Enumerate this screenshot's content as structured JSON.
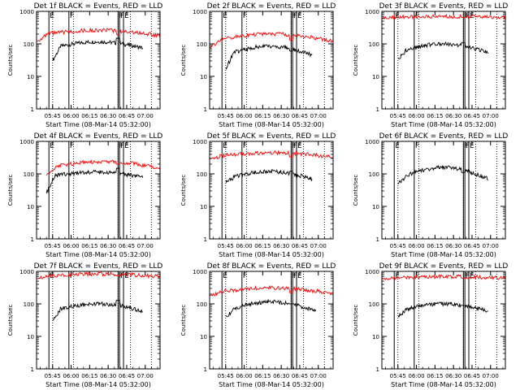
{
  "chart_data": [
    {
      "type": "line",
      "title": "Det 1f BLACK = Events, RED = LLD",
      "ylabel": "Counts/sec",
      "xlabel": "Start Time (08-Mar-14 05:32:00)",
      "yscale": "log",
      "ylim": [
        1,
        1000
      ],
      "yticks": [
        "1",
        "10",
        "100",
        "1000"
      ],
      "xlim": [
        "05:32",
        "07:12"
      ],
      "xticks": [
        "05:45",
        "06:00",
        "06:15",
        "06:30",
        "06:45",
        "07:00"
      ],
      "markers": [
        "E",
        "F",
        "F",
        "F",
        "E"
      ],
      "series": [
        {
          "name": "Events",
          "color": "#000000",
          "start": "05:45",
          "end": "06:58",
          "base": 75,
          "min": 30,
          "max": 125,
          "flare": 150
        },
        {
          "name": "LLD",
          "color": "#ff0000",
          "start": "05:32",
          "end": "07:12",
          "base": 180,
          "min": 120,
          "max": 280,
          "flare": 190
        }
      ]
    },
    {
      "type": "line",
      "title": "Det 2f BLACK = Events, RED = LLD",
      "ylabel": "Counts/sec",
      "xlabel": "Start Time (08-Mar-14 05:32:00)",
      "yscale": "log",
      "ylim": [
        1,
        1000
      ],
      "yticks": [
        "1",
        "10",
        "100",
        "1000"
      ],
      "xlim": [
        "05:32",
        "07:12"
      ],
      "xticks": [
        "05:45",
        "06:00",
        "06:15",
        "06:30",
        "06:45",
        "07:00"
      ],
      "markers": [
        "E",
        "F",
        "F",
        "F",
        "E"
      ],
      "series": [
        {
          "name": "Events",
          "color": "#000000",
          "start": "05:45",
          "end": "06:55",
          "base": 45,
          "min": 17,
          "max": 95,
          "flare": 60
        },
        {
          "name": "LLD",
          "color": "#ff0000",
          "start": "05:32",
          "end": "07:12",
          "base": 120,
          "min": 75,
          "max": 220,
          "flare": 130
        }
      ]
    },
    {
      "type": "line",
      "title": "Det 3f BLACK = Events, RED = LLD",
      "ylabel": "Counts/sec",
      "xlabel": "Start Time (08-Mar-14 05:32:00)",
      "yscale": "log",
      "ylim": [
        1,
        1000
      ],
      "yticks": [
        "1",
        "10",
        "100",
        "1000"
      ],
      "xlim": [
        "05:32",
        "07:12"
      ],
      "xticks": [
        "05:45",
        "06:00",
        "06:15",
        "06:30",
        "06:45",
        "07:00"
      ],
      "markers": [
        "E",
        "F",
        "F",
        "F",
        "E"
      ],
      "series": [
        {
          "name": "Events",
          "color": "#000000",
          "start": "05:45",
          "end": "06:58",
          "base": 55,
          "min": 35,
          "max": 110,
          "flare": 110
        },
        {
          "name": "LLD",
          "color": "#ff0000",
          "start": "05:32",
          "end": "07:12",
          "base": 650,
          "min": 600,
          "max": 700,
          "flare": 650
        }
      ]
    },
    {
      "type": "line",
      "title": "Det 4f BLACK = Events, RED = LLD",
      "ylabel": "Counts/sec",
      "xlabel": "Start Time (08-Mar-14 05:32:00)",
      "yscale": "log",
      "ylim": [
        1,
        1000
      ],
      "yticks": [
        "1",
        "10",
        "100",
        "1000"
      ],
      "xlim": [
        "05:32",
        "07:12"
      ],
      "xticks": [
        "05:45",
        "06:00",
        "06:15",
        "06:30",
        "06:45",
        "07:00"
      ],
      "markers": [
        "E",
        "F",
        "F",
        "F",
        "E"
      ],
      "series": [
        {
          "name": "Events",
          "color": "#000000",
          "start": "05:40",
          "end": "06:58",
          "base": 80,
          "min": 25,
          "max": 120,
          "flare": 150
        },
        {
          "name": "LLD",
          "color": "#ff0000",
          "start": "05:40",
          "end": "07:12",
          "base": 150,
          "min": 90,
          "max": 260,
          "flare": 200
        }
      ]
    },
    {
      "type": "line",
      "title": "Det 5f BLACK = Events, RED = LLD",
      "ylabel": "Counts/sec",
      "xlabel": "Start Time (08-Mar-14 05:32:00)",
      "yscale": "log",
      "ylim": [
        1,
        1000
      ],
      "yticks": [
        "1",
        "10",
        "100",
        "1000"
      ],
      "xlim": [
        "05:32",
        "07:12"
      ],
      "xticks": [
        "05:45",
        "06:00",
        "06:15",
        "06:30",
        "06:45",
        "07:00"
      ],
      "markers": [
        "E",
        "F",
        "F",
        "F",
        "E"
      ],
      "series": [
        {
          "name": "Events",
          "color": "#000000",
          "start": "05:45",
          "end": "06:55",
          "base": 70,
          "min": 55,
          "max": 130,
          "flare": 120
        },
        {
          "name": "LLD",
          "color": "#ff0000",
          "start": "05:32",
          "end": "07:12",
          "base": 330,
          "min": 280,
          "max": 470,
          "flare": 330
        }
      ]
    },
    {
      "type": "line",
      "title": "Det 6f BLACK = Events, RED = LLD",
      "ylabel": "Counts/sec",
      "xlabel": "Start Time (08-Mar-14 05:32:00)",
      "yscale": "log",
      "ylim": [
        1,
        1000
      ],
      "yticks": [
        "1",
        "10",
        "100",
        "1000"
      ],
      "xlim": [
        "05:32",
        "07:12"
      ],
      "xticks": [
        "05:45",
        "06:00",
        "06:15",
        "06:30",
        "06:45",
        "07:00"
      ],
      "markers": [
        "E",
        "F",
        "F",
        "F",
        "E"
      ],
      "series": [
        {
          "name": "Events",
          "color": "#000000",
          "start": "05:45",
          "end": "06:58",
          "base": 70,
          "min": 50,
          "max": 180,
          "flare": 110
        }
      ]
    },
    {
      "type": "line",
      "title": "Det 7f BLACK = Events, RED = LLD",
      "ylabel": "Counts/sec",
      "xlabel": "Start Time (08-Mar-14 05:32:00)",
      "yscale": "log",
      "ylim": [
        1,
        1000
      ],
      "yticks": [
        "1",
        "10",
        "100",
        "1000"
      ],
      "xlim": [
        "05:32",
        "07:12"
      ],
      "xticks": [
        "05:45",
        "06:00",
        "06:15",
        "06:30",
        "06:45",
        "07:00"
      ],
      "markers": [
        "E",
        "F",
        "F",
        "F",
        "E"
      ],
      "series": [
        {
          "name": "Events",
          "color": "#000000",
          "start": "05:45",
          "end": "06:58",
          "base": 60,
          "min": 30,
          "max": 110,
          "flare": 130
        },
        {
          "name": "LLD",
          "color": "#ff0000",
          "start": "05:32",
          "end": "07:12",
          "base": 700,
          "min": 600,
          "max": 850,
          "flare": 750
        }
      ]
    },
    {
      "type": "line",
      "title": "Det 8f BLACK = Events, RED = LLD",
      "ylabel": "Counts/sec",
      "xlabel": "Start Time (08-Mar-14 05:32:00)",
      "yscale": "log",
      "ylim": [
        1,
        1000
      ],
      "yticks": [
        "1",
        "10",
        "100",
        "1000"
      ],
      "xlim": [
        "05:32",
        "07:12"
      ],
      "xticks": [
        "05:45",
        "06:00",
        "06:15",
        "06:30",
        "06:45",
        "07:00"
      ],
      "markers": [
        "E",
        "F",
        "F",
        "F",
        "E"
      ],
      "series": [
        {
          "name": "Events",
          "color": "#000000",
          "start": "05:45",
          "end": "06:58",
          "base": 60,
          "min": 40,
          "max": 130,
          "flare": 100
        },
        {
          "name": "LLD",
          "color": "#ff0000",
          "start": "05:32",
          "end": "07:12",
          "base": 210,
          "min": 180,
          "max": 330,
          "flare": 220
        }
      ]
    },
    {
      "type": "line",
      "title": "Det 9f BLACK = Events, RED = LLD",
      "ylabel": "Counts/sec",
      "xlabel": "Start Time (08-Mar-14 05:32:00)",
      "yscale": "log",
      "ylim": [
        1,
        1000
      ],
      "yticks": [
        "1",
        "10",
        "100",
        "1000"
      ],
      "xlim": [
        "05:32",
        "07:12"
      ],
      "xticks": [
        "05:45",
        "06:00",
        "06:15",
        "06:30",
        "06:45",
        "07:00"
      ],
      "markers": [
        "E",
        "F",
        "F",
        "F",
        "E"
      ],
      "series": [
        {
          "name": "Events",
          "color": "#000000",
          "start": "05:45",
          "end": "06:58",
          "base": 60,
          "min": 40,
          "max": 110,
          "flare": 90
        },
        {
          "name": "LLD",
          "color": "#ff0000",
          "start": "05:32",
          "end": "07:12",
          "base": 620,
          "min": 550,
          "max": 700,
          "flare": 620
        }
      ]
    }
  ]
}
